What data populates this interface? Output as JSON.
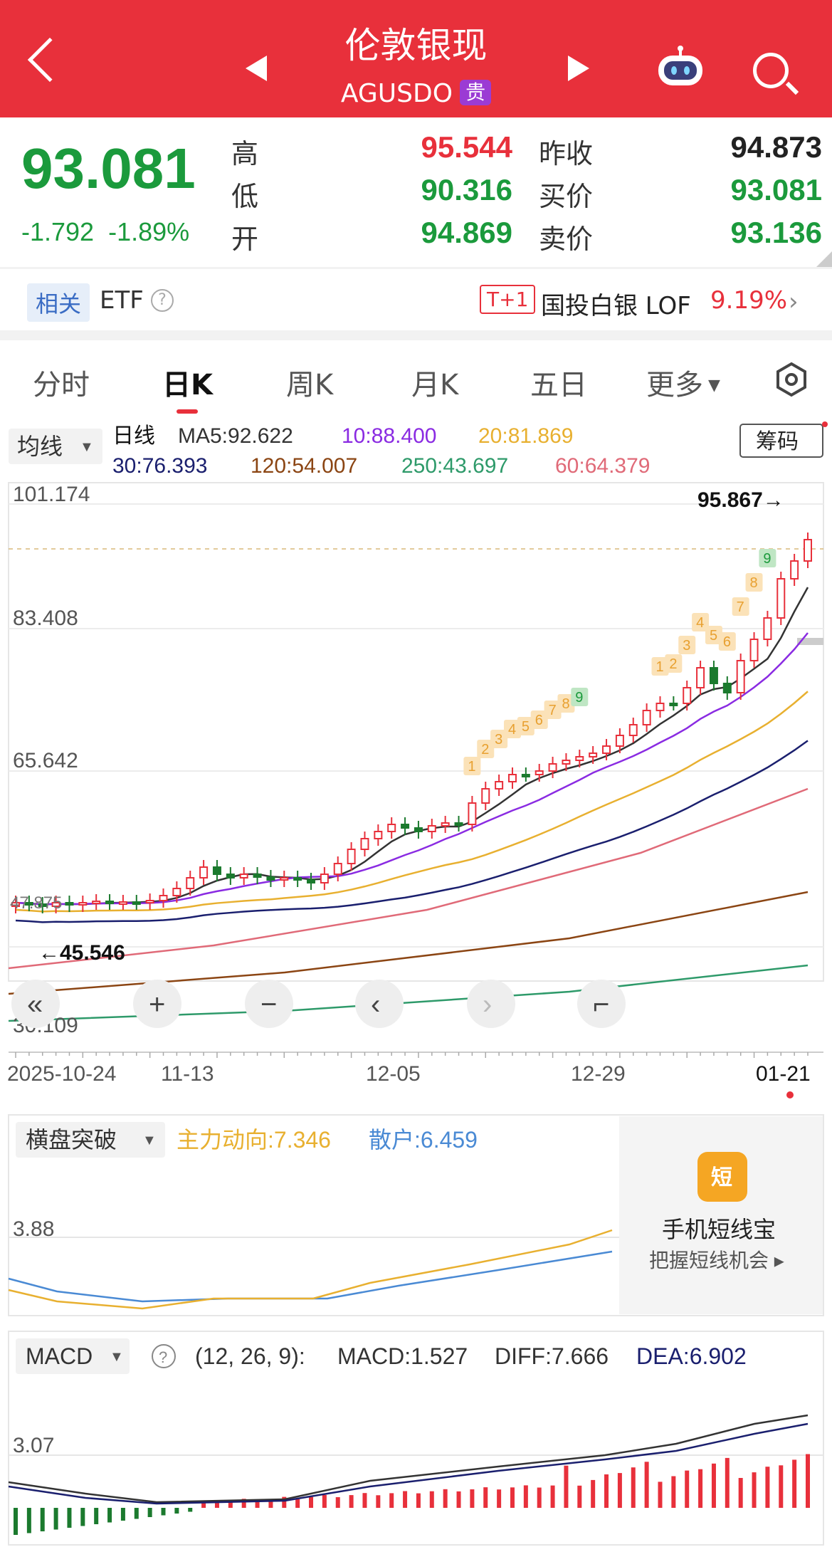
{
  "header": {
    "title": "伦敦银现",
    "subtitle": "AGUSDO",
    "tag": "贵"
  },
  "quote": {
    "price": "93.081",
    "change": "-1.792",
    "change_pct": "-1.89%",
    "labels": {
      "high": "高",
      "low": "低",
      "open": "开",
      "prev_close": "昨收",
      "bid": "买价",
      "ask": "卖价"
    },
    "high": "95.544",
    "low": "90.316",
    "open": "94.869",
    "prev_close": "94.873",
    "bid": "93.081",
    "ask": "93.136"
  },
  "related": {
    "badge": "相关",
    "etf": "ETF",
    "help": "?",
    "t1": "T+1",
    "name": "国投白银 LOF",
    "pct": "9.19%",
    "arrow": "›"
  },
  "tabs": {
    "items": [
      "分时",
      "日K",
      "周K",
      "月K",
      "五日",
      "更多"
    ],
    "active": "日K"
  },
  "ma_bar": {
    "selector": "均线",
    "day": "日线",
    "ma5": "MA5:92.622",
    "ma10": "10:88.400",
    "ma20": "20:81.869",
    "ma30": "30:76.393",
    "ma120": "120:54.007",
    "ma250": "250:43.697",
    "ma60": "60:64.379",
    "chips": "筹码"
  },
  "kline": {
    "y_ticks": [
      "101.174",
      "83.408",
      "65.642",
      "30.109"
    ],
    "max_label": "95.867→",
    "min_label": "←45.546",
    "first_price_label": "47.875",
    "x_ticks": [
      "2025-10-24",
      "11-13",
      "12-05",
      "12-29",
      "01-21"
    ],
    "colors": {
      "up": "#e8303b",
      "down": "#1b7a2e",
      "ma5": "#333333",
      "ma10": "#8a2be2",
      "ma20": "#e8b030",
      "ma30": "#1a1f6e",
      "ma60": "#e06a78",
      "ma120": "#8b4513",
      "ma250": "#2e9a6a"
    },
    "td_labels": [
      {
        "t": "1"
      },
      {
        "t": "2"
      },
      {
        "t": "3"
      },
      {
        "t": "4"
      },
      {
        "t": "5"
      },
      {
        "t": "6"
      },
      {
        "t": "7"
      },
      {
        "t": "8"
      },
      {
        "t": "9"
      },
      {
        "t": "1"
      },
      {
        "t": "2"
      },
      {
        "t": "3"
      },
      {
        "t": "4"
      },
      {
        "t": "5"
      },
      {
        "t": "6"
      },
      {
        "t": "7"
      },
      {
        "t": "8"
      },
      {
        "t": "9"
      }
    ]
  },
  "controls": [
    "«",
    "+",
    "−",
    "‹",
    "›",
    "⌐"
  ],
  "indicator1": {
    "selector": "横盘突破",
    "main": "主力动向:7.346",
    "retail": "散户:6.459",
    "y_tick": "3.88",
    "ad_title": "手机短线宝",
    "ad_sub": "把握短线机会 ▸",
    "ad_icon": "短"
  },
  "macd": {
    "selector": "MACD",
    "help": "?",
    "params": "(12, 26, 9):",
    "macd": "MACD:1.527",
    "diff": "DIFF:7.666",
    "dea": "DEA:6.902",
    "y_tick": "3.07"
  }
}
